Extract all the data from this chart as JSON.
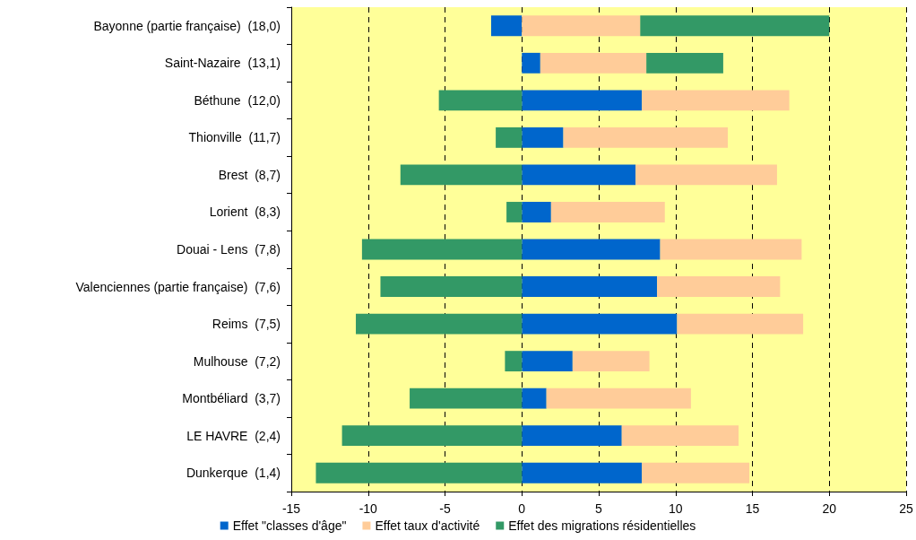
{
  "chart_data": {
    "type": "bar",
    "orientation": "horizontal",
    "stacked": true,
    "categories": [
      "Bayonne (partie française)  (18,0)",
      "Saint-Nazaire  (13,1)",
      "Béthune  (12,0)",
      "Thionville  (11,7)",
      "Brest  (8,7)",
      "Lorient  (8,3)",
      "Douai - Lens  (7,8)",
      "Valenciennes (partie française)  (7,6)",
      "Reims  (7,5)",
      "Mulhouse  (7,2)",
      "Montbéliard  (3,7)",
      "LE HAVRE  (2,4)",
      "Dunkerque  (1,4)"
    ],
    "series": [
      {
        "name": "Effet \"classes d'âge\"",
        "color": "#0066cc",
        "values": [
          -2.0,
          1.2,
          7.8,
          2.7,
          7.4,
          1.9,
          9.0,
          8.8,
          10.1,
          3.3,
          1.6,
          6.5,
          7.8
        ]
      },
      {
        "name": "Effet taux d'activité",
        "color": "#ffcc99",
        "values": [
          7.7,
          6.9,
          9.6,
          10.7,
          9.2,
          7.4,
          9.2,
          8.0,
          8.2,
          5.0,
          9.4,
          7.6,
          7.0
        ]
      },
      {
        "name": "Effet des migrations résidentielles",
        "color": "#339966",
        "values": [
          12.3,
          5.0,
          -5.4,
          -1.7,
          -7.9,
          -1.0,
          -10.4,
          -9.2,
          -10.8,
          -1.1,
          -7.3,
          -11.7,
          -13.4
        ]
      }
    ],
    "xlim": [
      -15,
      25
    ],
    "xticks": [
      -15,
      -10,
      -5,
      0,
      5,
      10,
      15,
      20,
      25
    ],
    "grid": "x",
    "legend": "bottom"
  }
}
